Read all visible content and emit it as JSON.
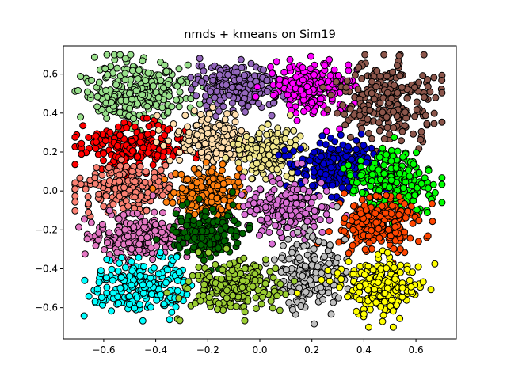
{
  "chart_data": {
    "type": "scatter",
    "title": "nmds + kmeans on Sim19",
    "xlabel": "",
    "ylabel": "",
    "xlim": [
      -0.755,
      0.755
    ],
    "ylim": [
      -0.76,
      0.745
    ],
    "xticks": [
      -0.6,
      -0.4,
      -0.2,
      0.0,
      0.2,
      0.4,
      0.6
    ],
    "xtick_labels": [
      "−0.6",
      "−0.4",
      "−0.2",
      "0.0",
      "0.2",
      "0.4",
      "0.6"
    ],
    "yticks": [
      -0.6,
      -0.4,
      -0.2,
      0.0,
      0.2,
      0.4,
      0.6
    ],
    "ytick_labels": [
      "−0.6",
      "−0.4",
      "−0.2",
      "0.0",
      "0.2",
      "0.4",
      "0.6"
    ],
    "grid": false,
    "marker_edge_color": "#000000",
    "clusters": [
      {
        "color": "#98df8a",
        "center": [
          -0.46,
          0.51
        ],
        "spread": [
          0.14,
          0.11
        ],
        "count": 260
      },
      {
        "color": "#9467bd",
        "center": [
          -0.09,
          0.54
        ],
        "spread": [
          0.11,
          0.08
        ],
        "count": 220
      },
      {
        "color": "#ff00ff",
        "center": [
          0.2,
          0.53
        ],
        "spread": [
          0.1,
          0.09
        ],
        "count": 220
      },
      {
        "color": "#8c564b",
        "center": [
          0.5,
          0.46
        ],
        "spread": [
          0.12,
          0.13
        ],
        "count": 240
      },
      {
        "color": "#ff0000",
        "center": [
          -0.49,
          0.23
        ],
        "spread": [
          0.13,
          0.07
        ],
        "count": 200
      },
      {
        "color": "#ffdead",
        "center": [
          -0.19,
          0.27
        ],
        "spread": [
          0.09,
          0.08
        ],
        "count": 190
      },
      {
        "color": "#f0e68c",
        "center": [
          0.03,
          0.2
        ],
        "spread": [
          0.08,
          0.08
        ],
        "count": 190
      },
      {
        "color": "#0000cd",
        "center": [
          0.29,
          0.13
        ],
        "spread": [
          0.1,
          0.09
        ],
        "count": 210
      },
      {
        "color": "#00ff00",
        "center": [
          0.52,
          0.05
        ],
        "spread": [
          0.1,
          0.11
        ],
        "count": 220
      },
      {
        "color": "#fa8072",
        "center": [
          -0.51,
          0.01
        ],
        "spread": [
          0.13,
          0.08
        ],
        "count": 220
      },
      {
        "color": "#ff7f0e",
        "center": [
          -0.19,
          0.0
        ],
        "spread": [
          0.09,
          0.09
        ],
        "count": 200
      },
      {
        "color": "#da70d6",
        "center": [
          0.1,
          -0.09
        ],
        "spread": [
          0.1,
          0.09
        ],
        "count": 210
      },
      {
        "color": "#ff4500",
        "center": [
          0.46,
          -0.17
        ],
        "spread": [
          0.1,
          0.09
        ],
        "count": 210
      },
      {
        "color": "#e377c2",
        "center": [
          -0.48,
          -0.23
        ],
        "spread": [
          0.12,
          0.08
        ],
        "count": 210
      },
      {
        "color": "#006400",
        "center": [
          -0.2,
          -0.22
        ],
        "spread": [
          0.09,
          0.09
        ],
        "count": 200
      },
      {
        "color": "#c0c0c0",
        "center": [
          0.19,
          -0.42
        ],
        "spread": [
          0.09,
          0.12
        ],
        "count": 210
      },
      {
        "color": "#00ffff",
        "center": [
          -0.45,
          -0.49
        ],
        "spread": [
          0.12,
          0.09
        ],
        "count": 220
      },
      {
        "color": "#9acd32",
        "center": [
          -0.1,
          -0.49
        ],
        "spread": [
          0.11,
          0.09
        ],
        "count": 220
      },
      {
        "color": "#ffff00",
        "center": [
          0.47,
          -0.49
        ],
        "spread": [
          0.11,
          0.1
        ],
        "count": 230
      }
    ]
  }
}
